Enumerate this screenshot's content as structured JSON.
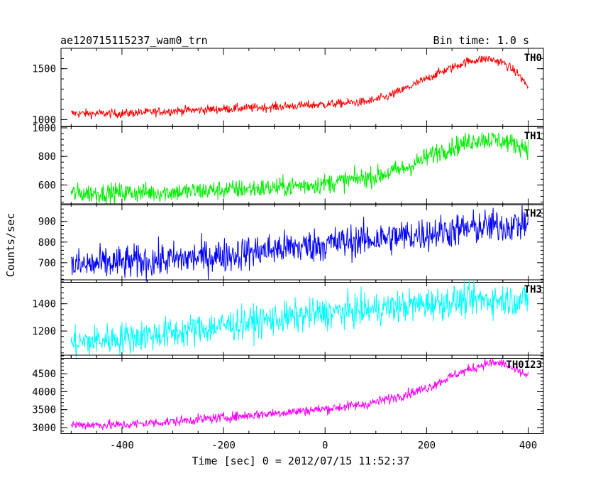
{
  "chart_data": {
    "type": "line",
    "title": "ae120715115237_wam0_trn",
    "subtitle": "Bin time: 1.0 s",
    "xlabel": "Time [sec] 0 = 2012/07/15 11:52:37",
    "ylabel": "Counts/sec",
    "xlim": [
      -520,
      430
    ],
    "x_ticks": [
      -400,
      -200,
      0,
      200,
      400
    ],
    "x_range_data": [
      -500,
      400
    ],
    "grid": false,
    "panels": [
      {
        "name": "TH0",
        "color": "#ff0000",
        "ylim": [
          930,
          1700
        ],
        "y_ticks": [
          1000,
          1500
        ],
        "y_tick_labels": [
          "1000",
          "1500"
        ],
        "noise": 22,
        "profile": [
          [
            -500,
            1060
          ],
          [
            -400,
            1060
          ],
          [
            -300,
            1085
          ],
          [
            -200,
            1105
          ],
          [
            -100,
            1125
          ],
          [
            0,
            1150
          ],
          [
            80,
            1175
          ],
          [
            120,
            1220
          ],
          [
            170,
            1330
          ],
          [
            220,
            1450
          ],
          [
            280,
            1570
          ],
          [
            320,
            1600
          ],
          [
            350,
            1560
          ],
          [
            380,
            1450
          ],
          [
            400,
            1320
          ]
        ]
      },
      {
        "name": "TH1",
        "color": "#00ee00",
        "ylim": [
          460,
          1010
        ],
        "y_ticks": [
          600,
          800,
          1000
        ],
        "y_tick_labels": [
          "600",
          "800",
          "1000"
        ],
        "noise": 35,
        "profile": [
          [
            -500,
            540
          ],
          [
            -400,
            545
          ],
          [
            -300,
            550
          ],
          [
            -200,
            565
          ],
          [
            -100,
            580
          ],
          [
            0,
            610
          ],
          [
            100,
            660
          ],
          [
            160,
            720
          ],
          [
            220,
            830
          ],
          [
            300,
            920
          ],
          [
            340,
            915
          ],
          [
            380,
            880
          ],
          [
            400,
            860
          ]
        ]
      },
      {
        "name": "TH2",
        "color": "#0000ff",
        "ylim": [
          605,
          985
        ],
        "y_ticks": [
          700,
          800,
          900
        ],
        "y_tick_labels": [
          "700",
          "800",
          "900"
        ],
        "noise": 42,
        "profile": [
          [
            -500,
            685
          ],
          [
            -400,
            700
          ],
          [
            -300,
            715
          ],
          [
            -200,
            735
          ],
          [
            -100,
            765
          ],
          [
            0,
            790
          ],
          [
            100,
            815
          ],
          [
            200,
            840
          ],
          [
            300,
            870
          ],
          [
            400,
            890
          ]
        ]
      },
      {
        "name": "TH3",
        "color": "#00ffff",
        "ylim": [
          1000,
          1575
        ],
        "y_ticks": [
          1200,
          1400
        ],
        "y_tick_labels": [
          "1200",
          "1400"
        ],
        "noise": 60,
        "profile": [
          [
            -500,
            1110
          ],
          [
            -400,
            1150
          ],
          [
            -300,
            1185
          ],
          [
            -200,
            1240
          ],
          [
            -100,
            1285
          ],
          [
            0,
            1330
          ],
          [
            100,
            1360
          ],
          [
            200,
            1400
          ],
          [
            300,
            1430
          ],
          [
            400,
            1430
          ]
        ]
      },
      {
        "name": "TH0123",
        "color": "#ff00ff",
        "ylim": [
          2830,
          5020
        ],
        "y_ticks": [
          3000,
          3500,
          4000,
          4500
        ],
        "y_tick_labels": [
          "3000",
          "3500",
          "4000",
          "4500"
        ],
        "noise": 70,
        "profile": [
          [
            -500,
            3080
          ],
          [
            -400,
            3070
          ],
          [
            -300,
            3170
          ],
          [
            -200,
            3280
          ],
          [
            -100,
            3400
          ],
          [
            0,
            3520
          ],
          [
            80,
            3650
          ],
          [
            140,
            3850
          ],
          [
            200,
            4100
          ],
          [
            260,
            4500
          ],
          [
            320,
            4800
          ],
          [
            350,
            4790
          ],
          [
            380,
            4560
          ],
          [
            400,
            4450
          ]
        ]
      }
    ]
  }
}
